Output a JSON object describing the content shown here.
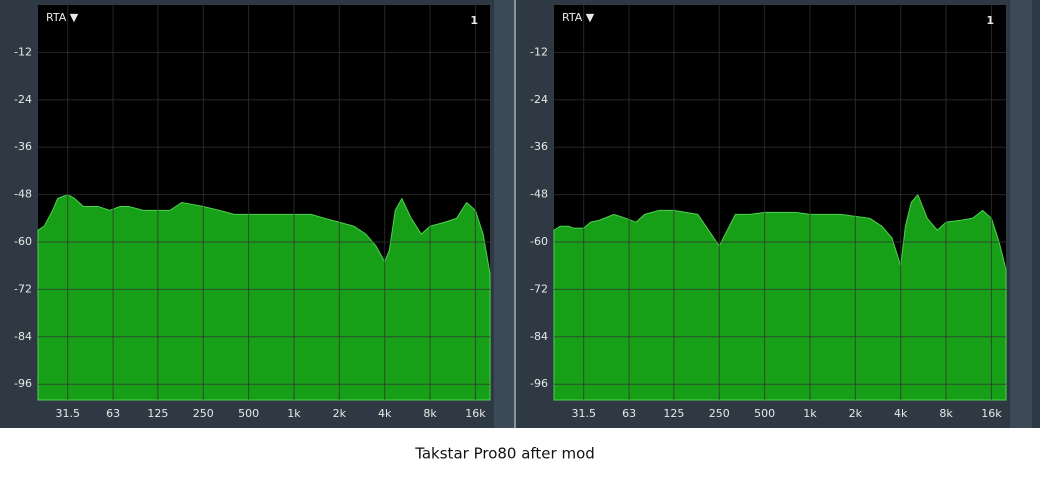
{
  "caption": "Takstar Pro80 after mod",
  "chart_data": [
    {
      "type": "area",
      "title": "RTA ▼",
      "channel_label": "1",
      "color": "#17a017",
      "x_scale": "log",
      "grid": true,
      "x": [
        20,
        22,
        25,
        27,
        31.5,
        35,
        40,
        50,
        60,
        70,
        80,
        100,
        125,
        150,
        180,
        250,
        320,
        400,
        500,
        650,
        800,
        1000,
        1300,
        1600,
        2000,
        2500,
        3000,
        3500,
        4000,
        4300,
        4700,
        5200,
        6000,
        7000,
        8000,
        10000,
        12000,
        14000,
        16000,
        18000,
        20000
      ],
      "values": [
        -57,
        -56,
        -52,
        -49,
        -48,
        -49,
        -51,
        -51,
        -52,
        -51,
        -51,
        -52,
        -52,
        -52,
        -50,
        -51,
        -52,
        -53,
        -53,
        -53,
        -53,
        -53,
        -53,
        -54,
        -55,
        -56,
        -58,
        -61,
        -65,
        -62,
        -52,
        -49,
        -54,
        -58,
        -56,
        -55,
        -54,
        -50,
        -52,
        -58,
        -68
      ],
      "xlim": [
        20,
        20000
      ],
      "ylim": [
        -100,
        0
      ],
      "xticks": [
        31.5,
        63,
        125,
        250,
        500,
        {
          "value": 1000,
          "label": "1k"
        },
        {
          "value": 2000,
          "label": "2k"
        },
        {
          "value": 4000,
          "label": "4k"
        },
        {
          "value": 8000,
          "label": "8k"
        },
        {
          "value": 16000,
          "label": "16k"
        }
      ],
      "yticks": [
        -12,
        -24,
        -36,
        -48,
        -60,
        -72,
        -84,
        -96
      ]
    },
    {
      "type": "area",
      "title": "RTA ▼",
      "channel_label": "1",
      "color": "#17a017",
      "x_scale": "log",
      "grid": true,
      "x": [
        20,
        22,
        25,
        27,
        31.5,
        35,
        40,
        50,
        60,
        70,
        80,
        100,
        125,
        150,
        180,
        250,
        320,
        400,
        500,
        650,
        800,
        1000,
        1300,
        1600,
        2000,
        2500,
        3000,
        3500,
        4000,
        4300,
        4700,
        5200,
        6000,
        7000,
        8000,
        10000,
        12000,
        14000,
        16000,
        18000,
        20000
      ],
      "values": [
        -57,
        -56,
        -56,
        -56.5,
        -56.5,
        -55,
        -54.5,
        -53,
        -54,
        -55,
        -53,
        -52,
        -52,
        -52.5,
        -53,
        -61,
        -53,
        -53,
        -52.5,
        -52.5,
        -52.5,
        -53,
        -53,
        -53,
        -53.5,
        -54,
        -56,
        -59,
        -66,
        -56,
        -50,
        -48,
        -54,
        -57,
        -55,
        -54.5,
        -54,
        -52,
        -54,
        -60,
        -67
      ],
      "xlim": [
        20,
        20000
      ],
      "ylim": [
        -100,
        0
      ],
      "xticks": [
        31.5,
        63,
        125,
        250,
        500,
        {
          "value": 1000,
          "label": "1k"
        },
        {
          "value": 2000,
          "label": "2k"
        },
        {
          "value": 4000,
          "label": "4k"
        },
        {
          "value": 8000,
          "label": "8k"
        },
        {
          "value": 16000,
          "label": "16k"
        }
      ],
      "yticks": [
        -12,
        -24,
        -36,
        -48,
        -60,
        -72,
        -84,
        -96
      ]
    }
  ]
}
